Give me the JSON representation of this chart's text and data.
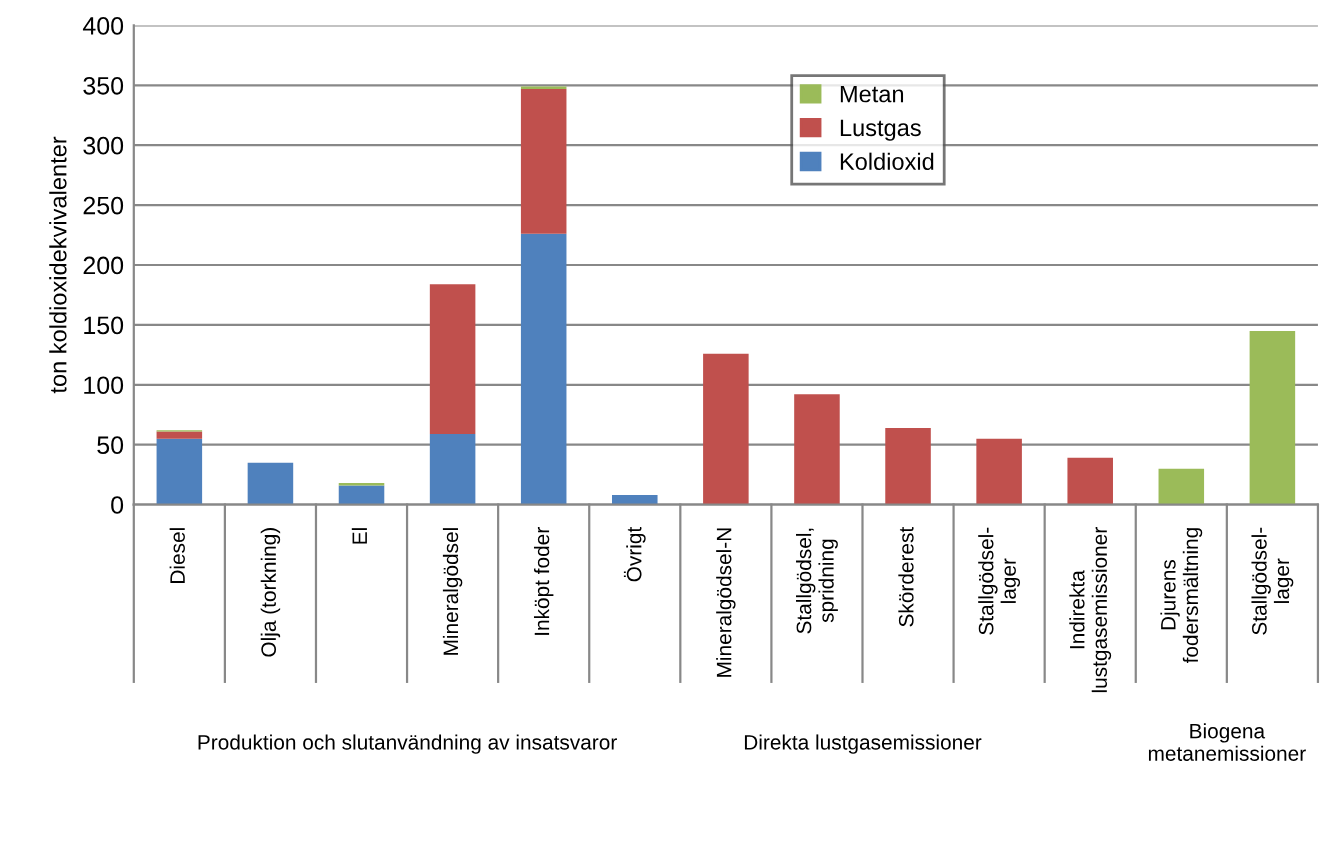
{
  "chart_data": {
    "type": "bar",
    "stacked": true,
    "ylabel": "ton koldioxidekvivalenter",
    "categories": [
      "Diesel",
      "Olja (torkning)",
      "El",
      "Mineralgödsel",
      "Inköpt foder",
      "Övrigt",
      "Mineralgödsel-N",
      "Stallgödsel,\nspridning",
      "Skörderest",
      "Stallgödsel-\nlager",
      "Indirekta\nlustgasemissioner",
      "Djurens\nfodersmältning",
      "Stallgödsel-\nlager"
    ],
    "series": [
      {
        "name": "Koldioxid",
        "color": "#4f81bd",
        "values": [
          55,
          35,
          16,
          59,
          226,
          8,
          null,
          null,
          null,
          null,
          null,
          null,
          null
        ]
      },
      {
        "name": "Lustgas",
        "color": "#c0504d",
        "values": [
          6,
          null,
          null,
          125,
          121,
          null,
          126,
          92,
          64,
          55,
          39,
          null,
          null
        ]
      },
      {
        "name": "Metan",
        "color": "#9bbb59",
        "values": [
          1,
          null,
          2,
          null,
          2,
          null,
          null,
          null,
          null,
          null,
          null,
          30,
          145
        ]
      }
    ],
    "annotations": [
      "Produktion och slutanvändning av insatsvaror",
      "Direkta lustgasemissioner",
      "Biogena\nmetanemissioner"
    ],
    "ylim": [
      0,
      400
    ],
    "yticks": [
      0,
      50,
      100,
      150,
      200,
      250,
      300,
      350,
      400
    ],
    "grid": "y",
    "legend": "top"
  }
}
